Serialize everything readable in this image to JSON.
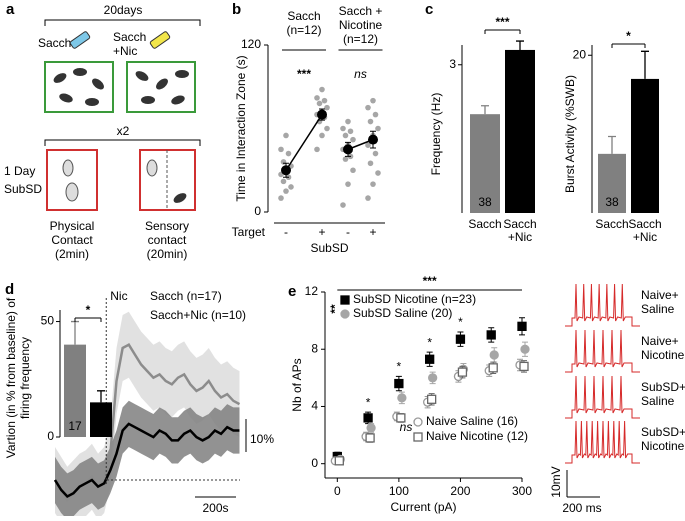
{
  "panel_a": {
    "panel": "a",
    "duration": "20days",
    "sacch": "Sacch",
    "sacch_nic": [
      "Sacch",
      "+Nic"
    ],
    "repeat": "x2",
    "day": [
      "1 Day",
      "SubSD"
    ],
    "physical": [
      "Physical",
      "Contact",
      "(2min)"
    ],
    "sensory": [
      "Sensory",
      "contact",
      "(20min)"
    ]
  },
  "chart_data": [
    {
      "type": "strip",
      "panel": "b",
      "ylabel": "Time in Interaction Zone (s)",
      "ylim": [
        0,
        120
      ],
      "yticks": [
        0,
        120
      ],
      "categories": [
        "-",
        "+",
        "-",
        "+"
      ],
      "x_title": "Target",
      "xlabel": "SubSD",
      "groups": [
        [
          "Sacch",
          "(n=12)"
        ],
        [
          "Sacch +",
          "Nicotine",
          "(n=12)"
        ]
      ],
      "annotations": [
        "***",
        "ns"
      ],
      "means": [
        30,
        70,
        45,
        52
      ],
      "errors": [
        5,
        4,
        5,
        6
      ],
      "points": [
        [
          10,
          15,
          18,
          22,
          25,
          27,
          30,
          33,
          36,
          42,
          45,
          55
        ],
        [
          45,
          55,
          60,
          65,
          68,
          70,
          72,
          75,
          78,
          80,
          82,
          88
        ],
        [
          5,
          20,
          30,
          38,
          40,
          45,
          48,
          52,
          55,
          58,
          60,
          65
        ],
        [
          10,
          20,
          28,
          35,
          42,
          48,
          55,
          60,
          65,
          70,
          75,
          80
        ]
      ],
      "point_color": "#a6a6a6",
      "color": "#000000"
    },
    {
      "type": "bar",
      "panel": "c",
      "ylabel": [
        "Frequency (Hz)"
      ],
      "ylim": [
        0,
        3.4
      ],
      "yticks": [
        3
      ],
      "categories": [
        [
          "Sacch"
        ],
        [
          "Sacch",
          "+Nic"
        ]
      ],
      "values": [
        2.0,
        3.3
      ],
      "errors": [
        0.17,
        0.18
      ],
      "bar_labels": [
        "38",
        "35"
      ],
      "colors": [
        "#808080",
        "#000000"
      ],
      "annotation": "***"
    },
    {
      "type": "bar",
      "ylabel": [
        "Burst Activity (%SWB)"
      ],
      "ylim": [
        0,
        21.3
      ],
      "yticks": [
        20
      ],
      "categories": [
        [
          "Sacch"
        ],
        [
          "Sacch",
          "+Nic"
        ]
      ],
      "values": [
        7.5,
        17
      ],
      "errors": [
        2.2,
        3.5
      ],
      "bar_labels": [
        "38",
        "35"
      ],
      "colors": [
        "#808080",
        "#000000"
      ],
      "annotation": "*"
    },
    {
      "type": "area",
      "panel": "d",
      "ylabel": [
        "Vartion (in % from baseline) of",
        "firing frequency"
      ],
      "x": [
        0,
        30,
        60,
        90,
        120,
        150,
        180,
        210,
        240,
        270,
        300,
        330,
        360,
        390,
        420,
        450,
        480,
        510,
        540,
        570,
        600,
        630,
        660,
        690,
        720,
        750,
        780,
        810,
        840,
        870,
        900
      ],
      "series": [
        {
          "name": "Sacch (n=17)",
          "color": "#8c8c8c",
          "band_color": "#dcdcdc",
          "sem": 10,
          "values": [
            0,
            -3,
            -6,
            -4,
            -2,
            -1,
            1,
            -2,
            0,
            8,
            30,
            40,
            41,
            38,
            35,
            33,
            31,
            32,
            30,
            29,
            31,
            32,
            29,
            27,
            28,
            30,
            27,
            25,
            26,
            24,
            23
          ]
        },
        {
          "name": "Sacch+Nic (n=10)",
          "color": "#000000",
          "band_color": "#7f7f7f",
          "sem": 7,
          "values": [
            0,
            -3,
            -5,
            -4,
            -2,
            -1,
            0,
            -2,
            -1,
            3,
            8,
            15,
            17,
            16,
            15,
            14,
            13,
            15,
            14,
            12,
            12,
            14,
            15,
            13,
            12,
            13,
            15,
            14,
            16,
            15,
            15
          ]
        }
      ],
      "event_x": 250,
      "event_label": "Nic",
      "scale_x": {
        "value": 200,
        "label": "200s"
      },
      "scale_y": {
        "value": 10,
        "label": "10%"
      }
    },
    {
      "type": "bar",
      "ylim": [
        0,
        55
      ],
      "yticks": [
        0,
        50
      ],
      "values": [
        40,
        15
      ],
      "errors": [
        10,
        5
      ],
      "bar_labels": [
        "17",
        "10"
      ],
      "colors": [
        "#808080",
        "#000000"
      ],
      "annotation": "*"
    },
    {
      "type": "scatter",
      "panel": "e",
      "xlabel": "Current (pA)",
      "ylabel": "Nb of APs",
      "x": [
        0,
        50,
        100,
        150,
        200,
        250,
        300
      ],
      "xlim": [
        -20,
        300
      ],
      "xticks": [
        0,
        100,
        200,
        300
      ],
      "ylim": [
        -1,
        12
      ],
      "yticks": [
        0,
        4,
        8,
        12
      ],
      "series": [
        {
          "name": "SubSD Nicotine (n=23)",
          "color": "#000000",
          "marker": "square",
          "filled": true,
          "values": [
            0.5,
            3.2,
            5.6,
            7.3,
            8.7,
            9.0,
            9.6
          ],
          "errors": [
            0.3,
            0.4,
            0.5,
            0.5,
            0.5,
            0.5,
            0.6
          ]
        },
        {
          "name": "SubSD Saline (20)",
          "color": "#a6a6a6",
          "marker": "circle",
          "filled": true,
          "values": [
            0.3,
            2.5,
            4.6,
            6.0,
            6.6,
            7.6,
            8.0
          ],
          "errors": [
            0.2,
            0.3,
            0.4,
            0.4,
            0.4,
            0.5,
            0.5
          ]
        },
        {
          "name": "Naive Saline (16)",
          "color": "#999999",
          "marker": "circle",
          "filled": false,
          "values": [
            0.2,
            1.9,
            3.3,
            4.3,
            6.1,
            6.5,
            6.9
          ],
          "errors": [
            0.2,
            0.3,
            0.3,
            0.4,
            0.4,
            0.4,
            0.4
          ]
        },
        {
          "name": "Naive Nicotine (12)",
          "color": "#666666",
          "marker": "square",
          "filled": false,
          "values": [
            0.2,
            1.8,
            3.2,
            4.5,
            6.4,
            6.7,
            6.8
          ],
          "errors": [
            0.2,
            0.3,
            0.3,
            0.4,
            0.4,
            0.4,
            0.4
          ]
        }
      ],
      "annotation": "***",
      "sub_annotation": "**",
      "ns_label": "ns",
      "star_x": [
        50,
        100,
        150,
        200
      ],
      "star_label": "*",
      "traces": [
        [
          "Naive+",
          "Saline"
        ],
        [
          "Naive+",
          "Nicotine"
        ],
        [
          "SubSD+",
          "Saline"
        ],
        [
          "SubSD+",
          "Nicotine"
        ]
      ],
      "trace_scale_v": "10mV",
      "trace_scale_t": "200 ms"
    }
  ]
}
